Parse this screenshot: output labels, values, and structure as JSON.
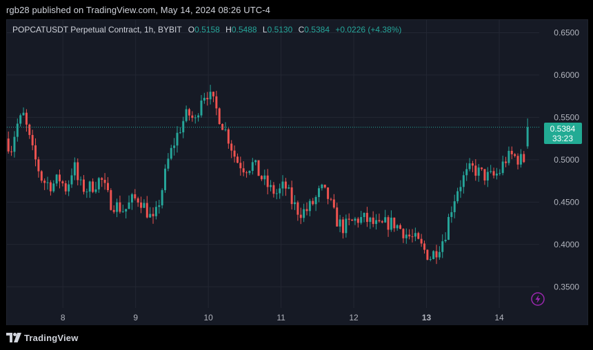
{
  "header": {
    "published": "rgb28 published on TradingView.com, May 14, 2024 08:26 UTC-4"
  },
  "legend": {
    "symbol": "POPCATUSDT Perpetual Contract, 1h, BYBIT",
    "o_label": "O",
    "o_value": "0.5158",
    "h_label": "H",
    "h_value": "0.5488",
    "l_label": "L",
    "l_value": "0.5130",
    "c_label": "C",
    "c_value": "0.5384",
    "change": "+0.0226 (+4.38%)"
  },
  "price_tag": {
    "price": "0.5384",
    "countdown": "33:23"
  },
  "footer": {
    "brand": "TradingView"
  },
  "colors": {
    "background": "#161a25",
    "grid": "#232733",
    "up": "#26a69a",
    "down": "#ef5350",
    "text": "#b2b5be",
    "price_line": "#26a69a",
    "lightning": "#9c27b0"
  },
  "icons": {
    "lightning": "lightning-icon",
    "logo": "tradingview-logo-icon"
  },
  "chart_data": {
    "type": "candlestick",
    "y_ticks": [
      "0.6500",
      "0.6000",
      "0.5500",
      "0.5000",
      "0.4500",
      "0.4000",
      "0.3500"
    ],
    "x_ticks": [
      "8",
      "9",
      "10",
      "11",
      "12",
      "13",
      "14"
    ],
    "x_tick_values": [
      8,
      9,
      10,
      11,
      12,
      13,
      14
    ],
    "ylim": [
      0.325,
      0.665
    ],
    "xlim": [
      7.23,
      14.55
    ],
    "grid": true,
    "last_price": 0.5384,
    "anchors": [
      [
        7.23,
        0.525
      ],
      [
        7.28,
        0.51
      ],
      [
        7.36,
        0.54
      ],
      [
        7.46,
        0.552
      ],
      [
        7.58,
        0.51
      ],
      [
        7.72,
        0.475
      ],
      [
        7.85,
        0.47
      ],
      [
        7.95,
        0.478
      ],
      [
        8.05,
        0.465
      ],
      [
        8.15,
        0.495
      ],
      [
        8.22,
        0.47
      ],
      [
        8.32,
        0.465
      ],
      [
        8.42,
        0.47
      ],
      [
        8.52,
        0.478
      ],
      [
        8.65,
        0.45
      ],
      [
        8.75,
        0.445
      ],
      [
        8.85,
        0.44
      ],
      [
        8.95,
        0.452
      ],
      [
        9.05,
        0.455
      ],
      [
        9.15,
        0.44
      ],
      [
        9.25,
        0.425
      ],
      [
        9.35,
        0.46
      ],
      [
        9.45,
        0.5
      ],
      [
        9.55,
        0.525
      ],
      [
        9.65,
        0.545
      ],
      [
        9.72,
        0.555
      ],
      [
        9.82,
        0.545
      ],
      [
        9.9,
        0.575
      ],
      [
        9.98,
        0.58
      ],
      [
        10.08,
        0.565
      ],
      [
        10.18,
        0.545
      ],
      [
        10.28,
        0.525
      ],
      [
        10.38,
        0.5
      ],
      [
        10.5,
        0.49
      ],
      [
        10.62,
        0.495
      ],
      [
        10.72,
        0.48
      ],
      [
        10.85,
        0.465
      ],
      [
        10.95,
        0.46
      ],
      [
        11.05,
        0.47
      ],
      [
        11.15,
        0.45
      ],
      [
        11.25,
        0.438
      ],
      [
        11.35,
        0.44
      ],
      [
        11.45,
        0.45
      ],
      [
        11.55,
        0.465
      ],
      [
        11.65,
        0.455
      ],
      [
        11.75,
        0.43
      ],
      [
        11.85,
        0.42
      ],
      [
        11.95,
        0.425
      ],
      [
        12.05,
        0.43
      ],
      [
        12.15,
        0.43
      ],
      [
        12.25,
        0.425
      ],
      [
        12.35,
        0.42
      ],
      [
        12.45,
        0.425
      ],
      [
        12.55,
        0.425
      ],
      [
        12.65,
        0.418
      ],
      [
        12.75,
        0.41
      ],
      [
        12.85,
        0.405
      ],
      [
        12.95,
        0.395
      ],
      [
        13.05,
        0.385
      ],
      [
        13.15,
        0.395
      ],
      [
        13.25,
        0.41
      ],
      [
        13.33,
        0.44
      ],
      [
        13.42,
        0.465
      ],
      [
        13.52,
        0.48
      ],
      [
        13.62,
        0.49
      ],
      [
        13.72,
        0.485
      ],
      [
        13.82,
        0.48
      ],
      [
        13.92,
        0.48
      ],
      [
        14.0,
        0.485
      ],
      [
        14.08,
        0.5
      ],
      [
        14.18,
        0.505
      ],
      [
        14.28,
        0.5
      ],
      [
        14.36,
        0.5
      ],
      [
        14.38,
        0.5384
      ]
    ]
  }
}
